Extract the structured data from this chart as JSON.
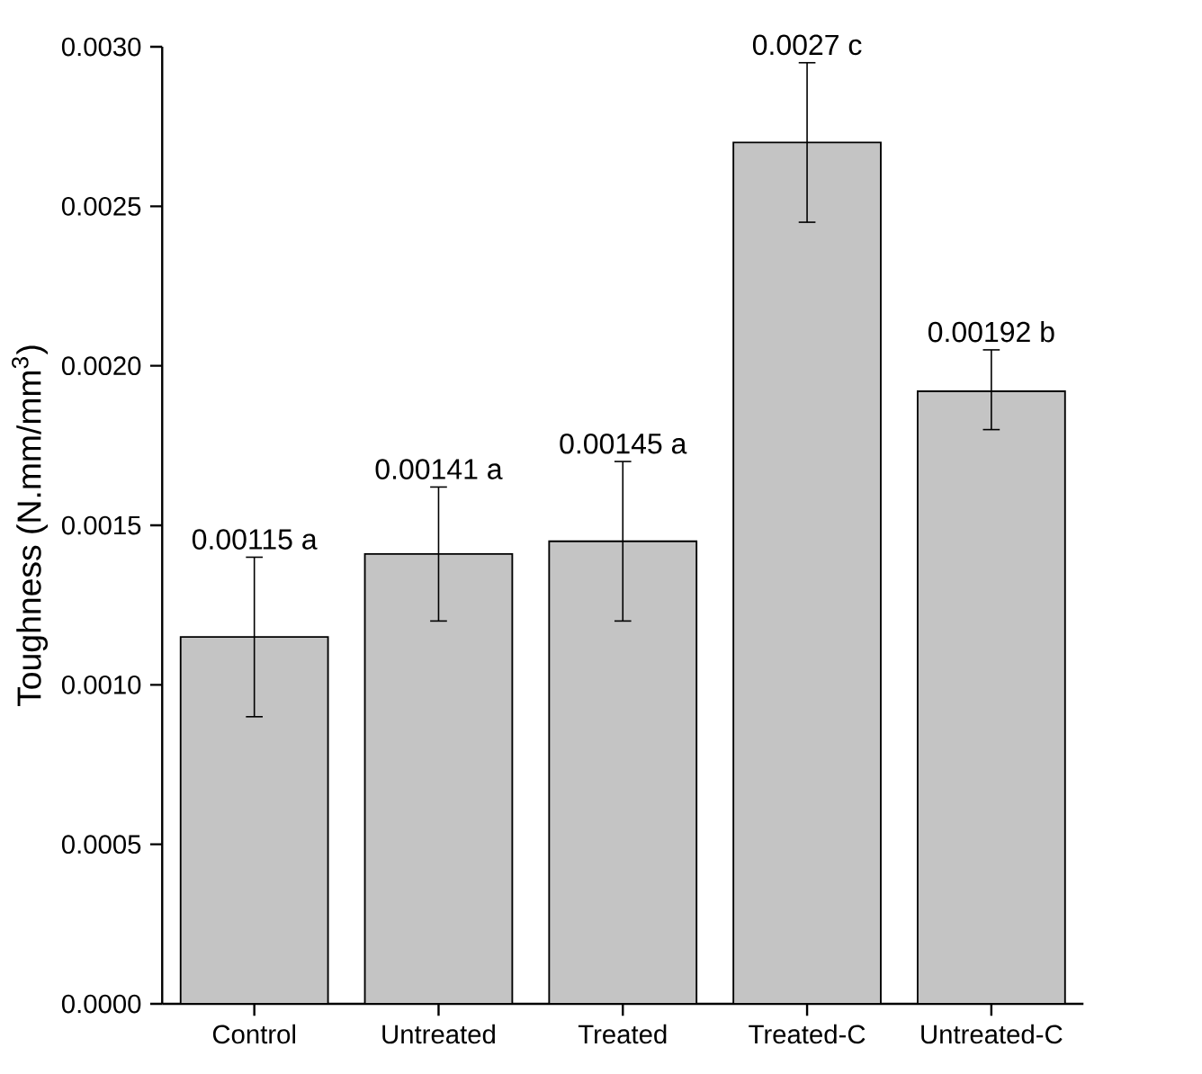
{
  "chart_data": {
    "type": "bar",
    "ylabel": "Toughness (N.mm/mm$^{3}$)",
    "categories": [
      "Control",
      "Untreated",
      "Treated",
      "Treated-C",
      "Untreated-C"
    ],
    "values": [
      0.00115,
      0.00141,
      0.00145,
      0.0027,
      0.00192
    ],
    "errors": [
      [
        0.0009,
        0.0014
      ],
      [
        0.0012,
        0.00162
      ],
      [
        0.0012,
        0.0017
      ],
      [
        0.00245,
        0.00295
      ],
      [
        0.0018,
        0.00205
      ]
    ],
    "value_labels": [
      "0.00115 a",
      "0.00141 a",
      "0.00145 a",
      "0.0027 c",
      "0.00192 b"
    ],
    "color": "#c4c4c4",
    "ylim": [
      0,
      0.003
    ],
    "yticks": [
      {
        "value": 0,
        "label": "0.0000"
      },
      {
        "value": 0.0005,
        "label": "0.0005"
      },
      {
        "value": 0.001,
        "label": "0.0010"
      },
      {
        "value": 0.0015,
        "label": "0.0015"
      },
      {
        "value": 0.002,
        "label": "0.0020"
      },
      {
        "value": 0.0025,
        "label": "0.0025"
      },
      {
        "value": 0.003,
        "label": "0.0030"
      }
    ],
    "grid": false
  }
}
